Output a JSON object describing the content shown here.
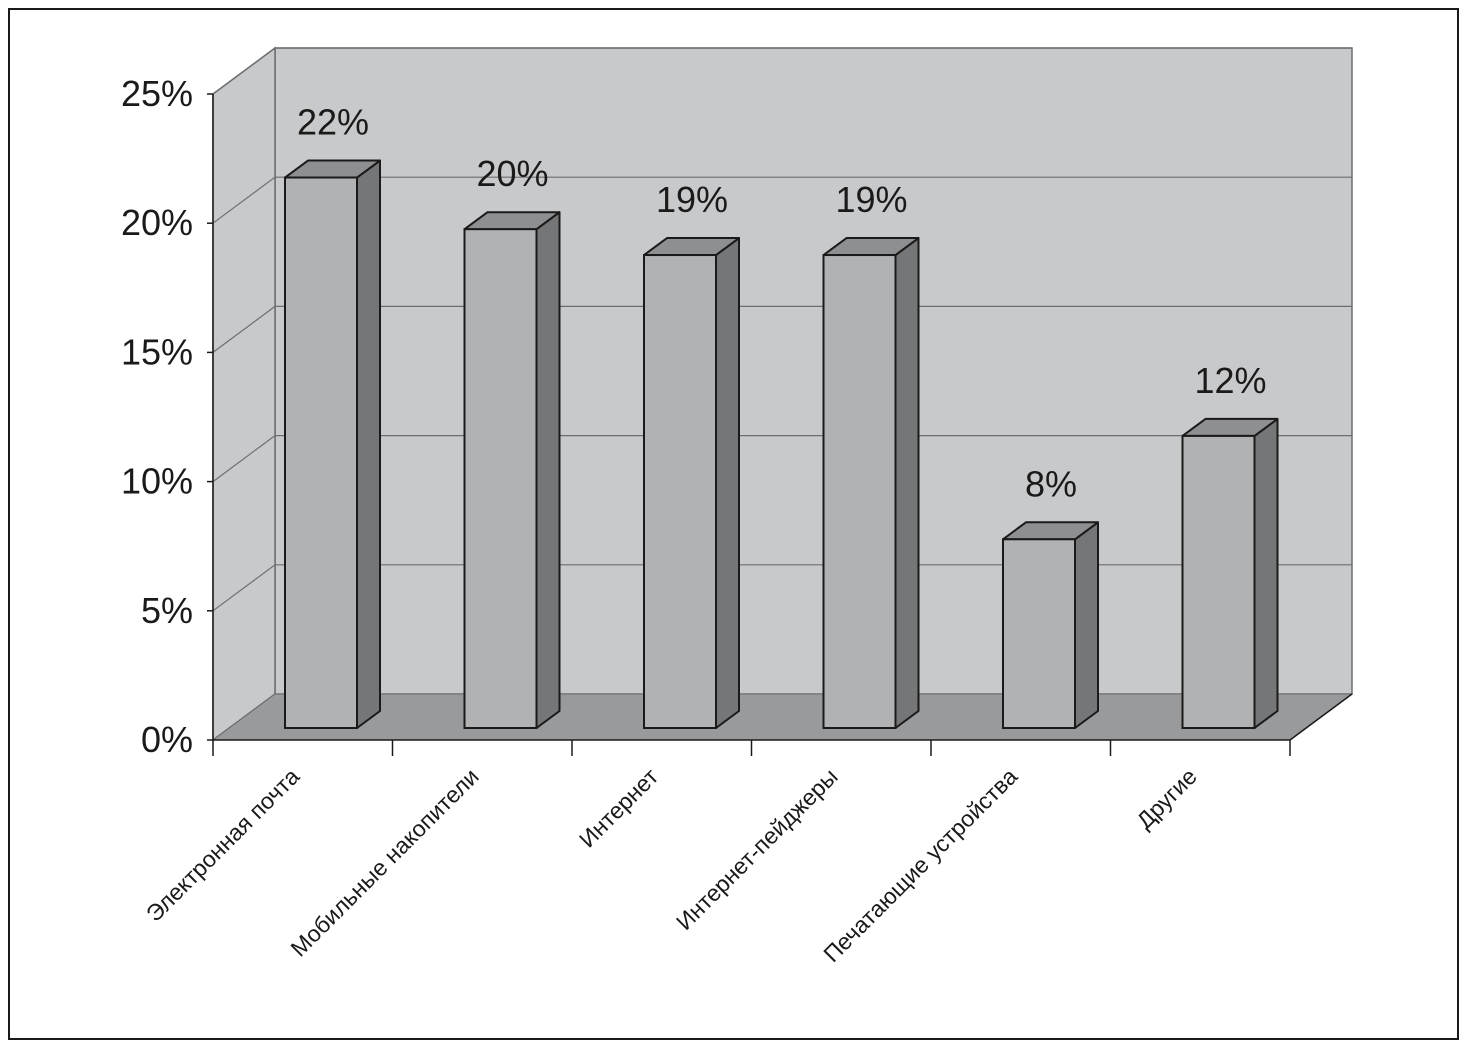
{
  "chart_data": {
    "type": "bar",
    "style": "3d",
    "title": "",
    "xlabel": "",
    "ylabel": "",
    "categories": [
      "Электронная почта",
      "Мобильные накопители",
      "Интернет",
      "Интернет-пейджеры",
      "Печатающие устройства",
      "Другие"
    ],
    "values": [
      22,
      20,
      19,
      19,
      8,
      12
    ],
    "data_labels": [
      "22%",
      "20%",
      "19%",
      "19%",
      "8%",
      "12%"
    ],
    "ylim": [
      0,
      25
    ],
    "yticks": [
      0,
      5,
      10,
      15,
      20,
      25
    ],
    "ytick_labels": [
      "0%",
      "5%",
      "10%",
      "15%",
      "20%",
      "25%"
    ],
    "grid": true,
    "legend": "none",
    "colors": {
      "wall": "#c8c9cb",
      "floor": "#999a9c",
      "bar_front": "#b1b2b4",
      "bar_top": "#8e8f91",
      "bar_side": "#757678",
      "gridline": "#6d6e70",
      "outline": "#1a1a1a"
    }
  }
}
